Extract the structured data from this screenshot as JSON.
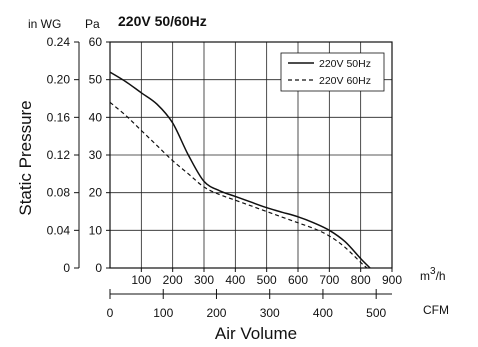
{
  "chart_data": {
    "type": "line",
    "title": "220V 50/60Hz",
    "xlabel": "Air Volume",
    "ylabel": "Static Pressure",
    "left_axis_unit": "in WG",
    "right_axis_unit": "Pa",
    "x_primary_unit": "m³/h",
    "x_primary_unit_base": "m",
    "x_primary_unit_exp": "3",
    "x_primary_unit_tail": "/h",
    "x_secondary_unit": "CFM",
    "xlim_m3h": [
      0,
      900
    ],
    "ylim_pa": [
      0,
      60
    ],
    "x_ticks_m3h": [
      "100",
      "200",
      "300",
      "400",
      "500",
      "600",
      "700",
      "800",
      "900"
    ],
    "x_ticks_cfm": [
      "0",
      "100",
      "200",
      "300",
      "400",
      "500"
    ],
    "y_ticks_pa": [
      "0",
      "10",
      "20",
      "30",
      "40",
      "50",
      "60"
    ],
    "y_ticks_inwg": [
      "0",
      "0.04",
      "0.08",
      "0.12",
      "0.16",
      "0.20",
      "0.24"
    ],
    "grid": true,
    "legend_position": "top-right",
    "series": [
      {
        "name": "220V 50Hz",
        "style": "solid",
        "x": [
          0,
          50,
          100,
          150,
          200,
          250,
          300,
          350,
          400,
          450,
          500,
          550,
          600,
          650,
          700,
          750,
          800,
          830
        ],
        "y": [
          52,
          49.5,
          46.5,
          43.5,
          38.5,
          30,
          23,
          20.5,
          19,
          17.5,
          16,
          14.8,
          13.6,
          12,
          10,
          7,
          2.5,
          0
        ]
      },
      {
        "name": "220V 60Hz",
        "style": "dashed",
        "x": [
          0,
          50,
          100,
          150,
          200,
          250,
          300,
          350,
          400,
          450,
          500,
          550,
          600,
          650,
          700,
          750,
          800,
          820
        ],
        "y": [
          44,
          40.5,
          36.5,
          32.5,
          28.5,
          25,
          21.5,
          19.5,
          18,
          16.5,
          15,
          13.5,
          12,
          10.5,
          8.5,
          5.5,
          1.5,
          0
        ]
      }
    ]
  }
}
